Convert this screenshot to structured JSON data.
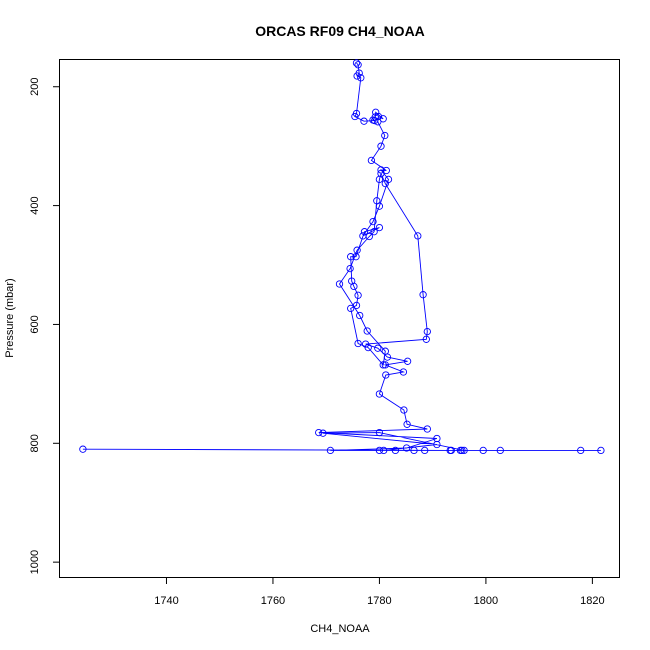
{
  "chart_data": {
    "type": "line",
    "title": "ORCAS RF09 CH4_NOAA",
    "xlabel": "CH4_NOAA",
    "ylabel": "Pressure (mbar)",
    "xlim": [
      1720,
      1825
    ],
    "ylim": [
      1025,
      155
    ],
    "y_reversed": true,
    "xticks": [
      1740,
      1760,
      1780,
      1800,
      1820
    ],
    "yticks": [
      200,
      400,
      600,
      800,
      1000
    ],
    "grid": false,
    "color": "#0000ff",
    "marker": "open-circle",
    "series": [
      {
        "x": [
          1724.3,
          1793.3,
          1795.2,
          1788.5,
          1786.5,
          1793.5,
          1783.0,
          1780.8,
          1790.8,
          1769.4,
          1780.0,
          1795.9,
          1802.7,
          1817.8,
          1821.6,
          1799.5,
          1795.5,
          1780.0,
          1770.8,
          1785.1,
          1790.8,
          1768.6,
          1789.0,
          1785.2,
          1784.6,
          1780.0,
          1781.2,
          1784.5,
          1781.1,
          1785.3,
          1781.5,
          1779.7,
          1777.4,
          1788.8,
          1789.0,
          1788.2,
          1787.2,
          1781.1,
          1780.3,
          1780.0,
          1779.5,
          1779.0,
          1778.1,
          1775.8,
          1774.5,
          1772.5,
          1776.3,
          1777.7,
          1781.1,
          1780.7,
          1777.9,
          1776.0,
          1774.6,
          1775.7,
          1776.0,
          1775.2,
          1774.8,
          1774.6,
          1775.6,
          1777.2,
          1780.0,
          1776.9,
          1778.8,
          1780.0,
          1781.7,
          1780.3,
          1781.3,
          1778.5,
          1780.3,
          1781.0,
          1779.7,
          1779.8,
          1780.7,
          1779.3,
          1779.2,
          1778.8,
          1779.1,
          1777.1,
          1775.4,
          1775.7,
          1776.5,
          1775.8,
          1776.2,
          1776.0,
          1775.7
        ],
        "y": [
          810,
          812,
          812,
          812,
          812,
          812,
          812,
          812,
          802,
          783,
          782,
          812,
          812,
          812,
          812,
          812,
          812,
          812,
          812,
          808,
          792,
          782,
          776,
          768,
          744,
          717,
          685,
          680,
          668,
          662,
          655,
          640,
          633,
          625,
          612,
          550,
          451,
          363,
          346,
          356,
          392,
          444,
          452,
          475,
          506,
          532,
          585,
          611,
          645,
          668,
          639,
          632,
          573,
          568,
          551,
          536,
          527,
          486,
          486,
          444,
          437,
          451,
          427,
          401,
          356,
          340,
          341,
          324,
          300,
          282,
          259,
          250,
          254,
          243,
          251,
          256,
          257,
          258,
          250,
          245,
          185,
          182,
          177,
          163,
          160
        ]
      }
    ]
  }
}
